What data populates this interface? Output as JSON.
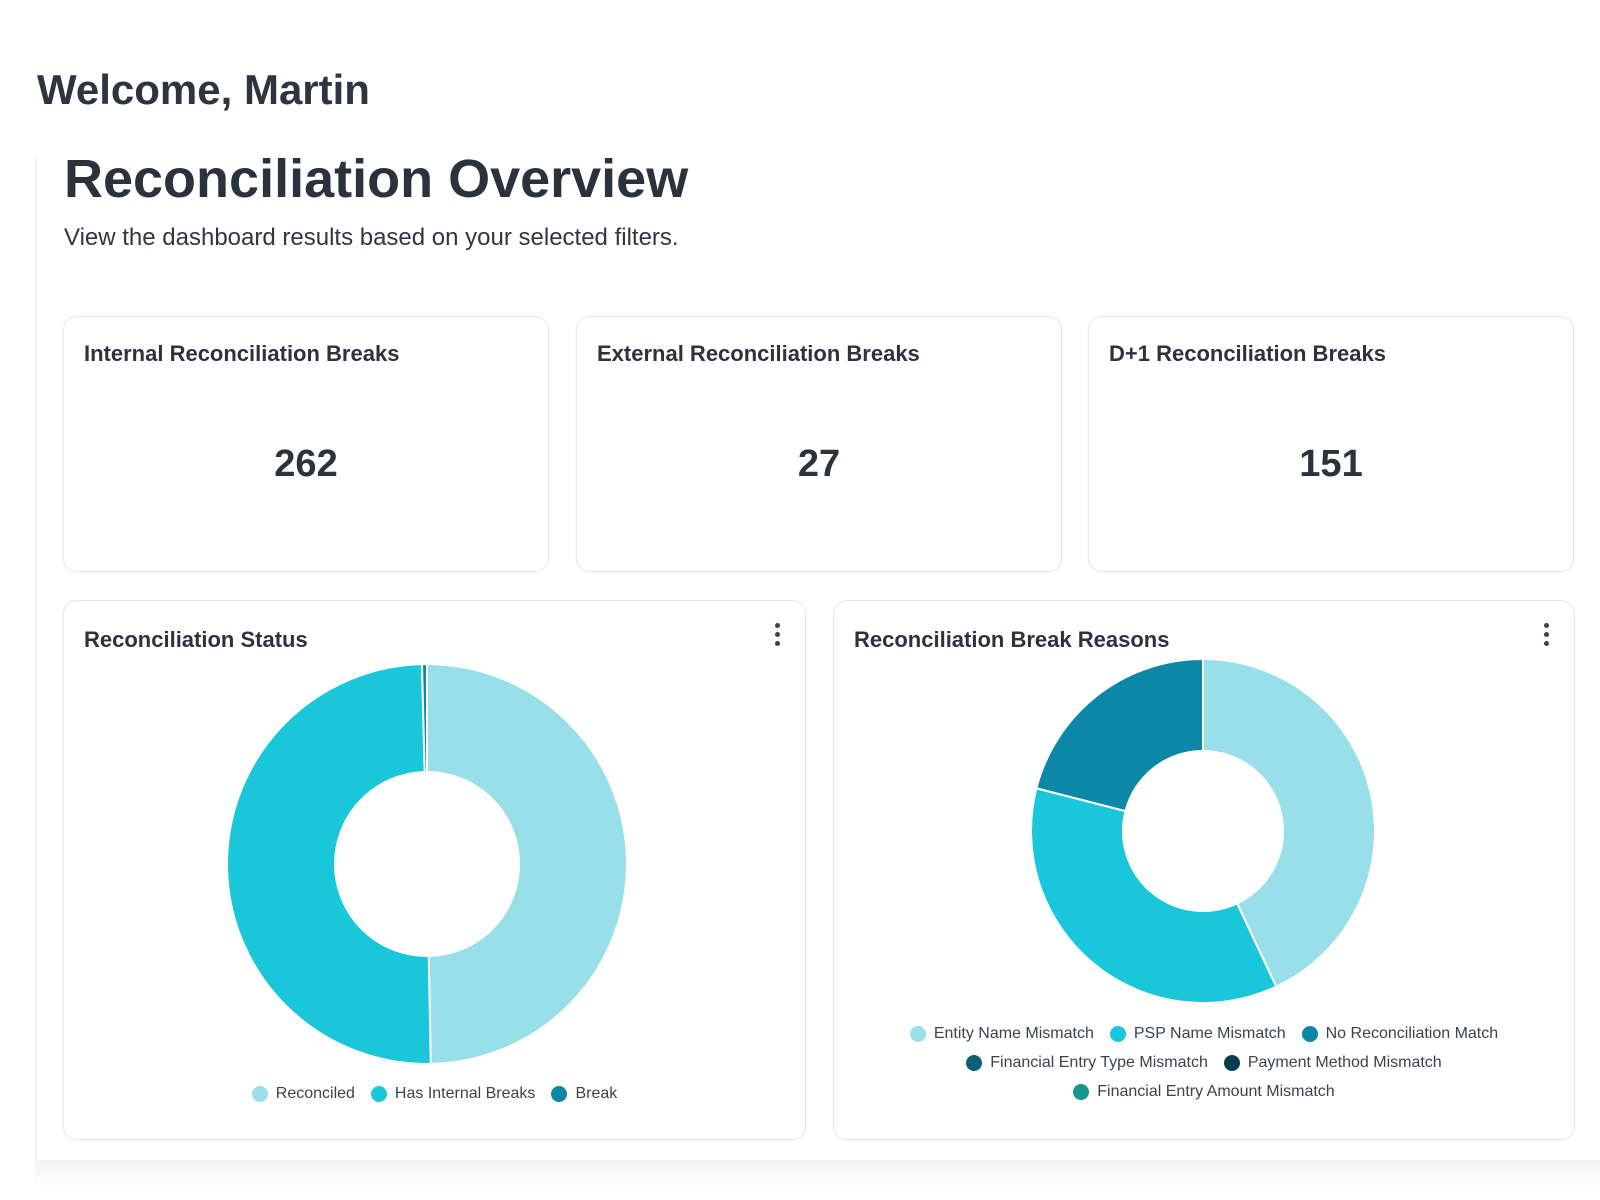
{
  "header": {
    "welcome": "Welcome, Martin",
    "title": "Reconciliation Overview",
    "subtitle": "View the dashboard results based on your selected filters."
  },
  "kpis": [
    {
      "label": "Internal Reconciliation Breaks",
      "value": "262"
    },
    {
      "label": "External Reconciliation Breaks",
      "value": "27"
    },
    {
      "label": "D+1 Reconciliation Breaks",
      "value": "151"
    }
  ],
  "icons": {
    "card_menu": "more-vertical-icon"
  },
  "chart_data": [
    {
      "type": "pie",
      "title": "Reconciliation Status",
      "donut": true,
      "legend_position": "bottom",
      "categories": [
        "Reconciled",
        "Has Internal Breaks",
        "Break"
      ],
      "values": [
        49.7,
        49.9,
        0.4
      ],
      "colors": [
        "#98dfea",
        "#19c6da",
        "#0d87a8"
      ]
    },
    {
      "type": "pie",
      "title": "Reconciliation Break Reasons",
      "donut": true,
      "legend_position": "bottom",
      "categories": [
        "Entity Name Mismatch",
        "PSP Name Mismatch",
        "No Reconciliation Match",
        "Financial Entry Type Mismatch",
        "Payment Method Mismatch",
        "Financial Entry Amount Mismatch"
      ],
      "values": [
        43,
        36,
        21,
        0,
        0,
        0
      ],
      "colors": [
        "#98dfea",
        "#19c6da",
        "#0d87a8",
        "#0b5f75",
        "#083c4e",
        "#16978a"
      ]
    }
  ]
}
